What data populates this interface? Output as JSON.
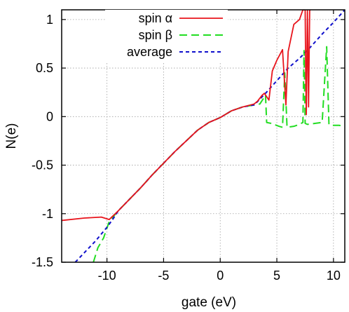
{
  "chart_data": {
    "type": "line",
    "title": "",
    "xlabel": "gate (eV)",
    "ylabel": "N(e)",
    "xlim": [
      -14,
      11
    ],
    "ylim": [
      -1.5,
      1.1
    ],
    "xticks": [
      -10,
      -5,
      0,
      5,
      10
    ],
    "xtick_labels": [
      "-10",
      "-5",
      "0",
      "5",
      "10"
    ],
    "yticks": [
      -1.5,
      -1,
      -0.5,
      0,
      0.5,
      1
    ],
    "ytick_labels": [
      "-1.5",
      "-1",
      "-0.5",
      "0",
      "0.5",
      "1"
    ],
    "grid": true,
    "legend_position": "top-center",
    "series": [
      {
        "name": "spin α",
        "color": "#e8141c",
        "dash": "solid",
        "x": [
          -14,
          -12,
          -10.5,
          -9.8,
          -9,
          -8,
          -7,
          -6,
          -5,
          -4,
          -3,
          -2,
          -1,
          0,
          1,
          2,
          3,
          3.3,
          3.7,
          3.9,
          4.3,
          4.6,
          5.0,
          5.5,
          5.8,
          6.0,
          6.5,
          7.0,
          7.3,
          7.5,
          7.55,
          7.6,
          7.7,
          7.8,
          7.9,
          8.0
        ],
        "values": [
          -1.07,
          -1.045,
          -1.035,
          -1.06,
          -0.97,
          -0.85,
          -0.73,
          -0.6,
          -0.48,
          -0.36,
          -0.25,
          -0.14,
          -0.06,
          -0.01,
          0.06,
          0.1,
          0.13,
          0.16,
          0.22,
          0.24,
          0.17,
          0.47,
          0.58,
          0.69,
          0.12,
          0.67,
          0.95,
          1.0,
          1.1,
          1.1,
          0.45,
          0.02,
          1.1,
          0.1,
          1.1,
          1.1
        ]
      },
      {
        "name": "spin β",
        "color": "#22dd22",
        "dash": "dashed",
        "x": [
          -11.2,
          -10.8,
          -10.3,
          -9.8,
          -9,
          -8,
          -7,
          -6,
          -5,
          -4,
          -3,
          -2,
          -1,
          0,
          1,
          2,
          3,
          3.5,
          4.0,
          4.1,
          4.5,
          5.2,
          5.5,
          5.7,
          5.9,
          6.5,
          7.0,
          7.3,
          7.4,
          7.5,
          7.7,
          9.0,
          9.2,
          9.4,
          9.6,
          9.8,
          10.5,
          11.0
        ],
        "values": [
          -1.5,
          -1.35,
          -1.25,
          -1.08,
          -0.97,
          -0.85,
          -0.73,
          -0.6,
          -0.48,
          -0.36,
          -0.25,
          -0.14,
          -0.06,
          -0.01,
          0.06,
          0.1,
          0.12,
          0.13,
          0.22,
          -0.06,
          -0.07,
          -0.1,
          -0.11,
          0.45,
          -0.11,
          -0.1,
          -0.08,
          -0.06,
          0.68,
          -0.07,
          -0.08,
          -0.06,
          0.33,
          0.72,
          -0.08,
          -0.09,
          -0.09,
          -0.1
        ]
      },
      {
        "name": "average",
        "color": "#1010cc",
        "dash": "dotted",
        "x": [
          -12.8,
          -11,
          -10,
          -9.5,
          -9,
          -8,
          -7,
          -6,
          -5,
          -4,
          -3,
          -2,
          -1,
          0,
          1,
          2,
          3,
          4,
          5,
          6,
          7,
          8,
          9,
          10,
          11
        ],
        "values": [
          -1.5,
          -1.28,
          -1.14,
          -1.06,
          -0.97,
          -0.85,
          -0.73,
          -0.6,
          -0.48,
          -0.36,
          -0.25,
          -0.14,
          -0.06,
          -0.01,
          0.06,
          0.1,
          0.12,
          0.24,
          0.37,
          0.5,
          0.6,
          0.72,
          0.85,
          0.97,
          1.1
        ]
      }
    ]
  }
}
